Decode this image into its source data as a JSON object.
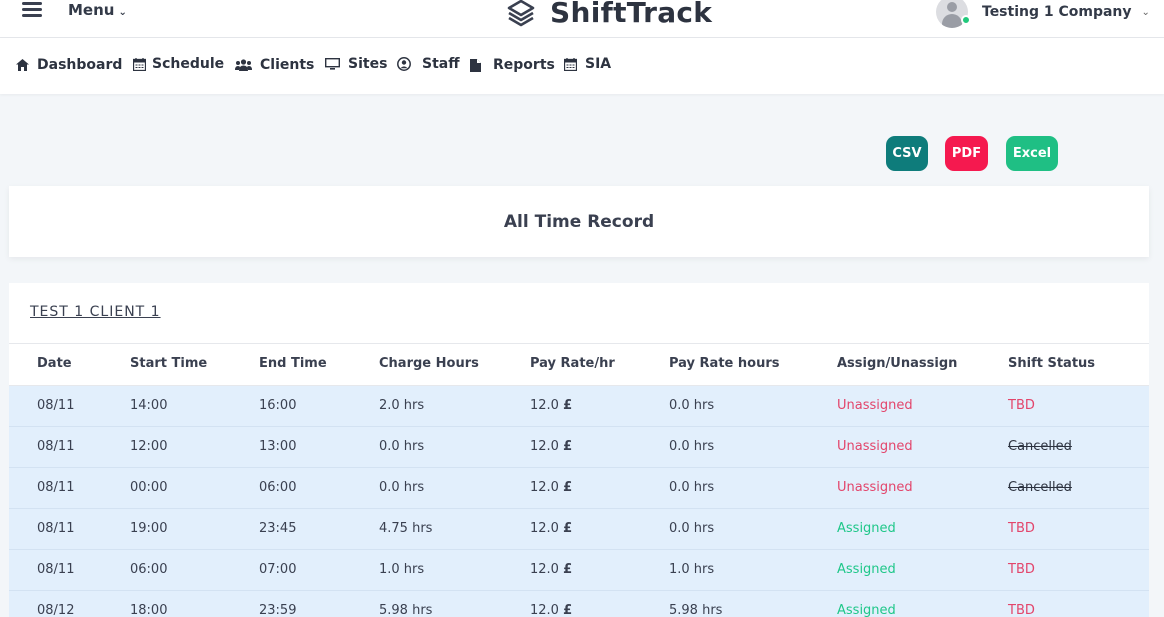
{
  "header": {
    "menu_label": "Menu",
    "brand": "ShiftTrack",
    "company": "Testing 1 Company"
  },
  "nav": [
    {
      "label": "Dashboard",
      "icon": "home-icon"
    },
    {
      "label": "Schedule",
      "icon": "calendar-icon"
    },
    {
      "label": "Clients",
      "icon": "users-icon"
    },
    {
      "label": "Sites",
      "icon": "monitor-icon"
    },
    {
      "label": "Staff",
      "icon": "user-circle-icon"
    },
    {
      "label": "Reports",
      "icon": "file-icon"
    },
    {
      "label": "SIA",
      "icon": "calendar-icon"
    }
  ],
  "exports": {
    "csv": "CSV",
    "pdf": "PDF",
    "excel": "Excel"
  },
  "colors": {
    "csv": "#0e7c7b",
    "pdf": "#f5194f",
    "excel": "#1fbf84",
    "assigned": "#1fc789",
    "unassigned": "#e3456b"
  },
  "page_title": "All Time Record",
  "client": "TEST 1 CLIENT 1",
  "table": {
    "headers": [
      "Date",
      "Start Time",
      "End Time",
      "Charge Hours",
      "Pay Rate/hr",
      "Pay Rate hours",
      "Assign/Unassign",
      "Shift Status"
    ],
    "currency": "£",
    "rows": [
      {
        "date": "08/11",
        "start": "14:00",
        "end": "16:00",
        "charge": "2.0 hrs",
        "rate": "12.0",
        "pay_hours": "0.0 hrs",
        "assign": "Unassigned",
        "status": "TBD"
      },
      {
        "date": "08/11",
        "start": "12:00",
        "end": "13:00",
        "charge": "0.0 hrs",
        "rate": "12.0",
        "pay_hours": "0.0 hrs",
        "assign": "Unassigned",
        "status": "Cancelled"
      },
      {
        "date": "08/11",
        "start": "00:00",
        "end": "06:00",
        "charge": "0.0 hrs",
        "rate": "12.0",
        "pay_hours": "0.0 hrs",
        "assign": "Unassigned",
        "status": "Cancelled"
      },
      {
        "date": "08/11",
        "start": "19:00",
        "end": "23:45",
        "charge": "4.75 hrs",
        "rate": "12.0",
        "pay_hours": "0.0 hrs",
        "assign": "Assigned",
        "status": "TBD"
      },
      {
        "date": "08/11",
        "start": "06:00",
        "end": "07:00",
        "charge": "1.0 hrs",
        "rate": "12.0",
        "pay_hours": "1.0 hrs",
        "assign": "Assigned",
        "status": "TBD"
      },
      {
        "date": "08/12",
        "start": "18:00",
        "end": "23:59",
        "charge": "5.98 hrs",
        "rate": "12.0",
        "pay_hours": "5.98 hrs",
        "assign": "Assigned",
        "status": "TBD"
      }
    ]
  }
}
